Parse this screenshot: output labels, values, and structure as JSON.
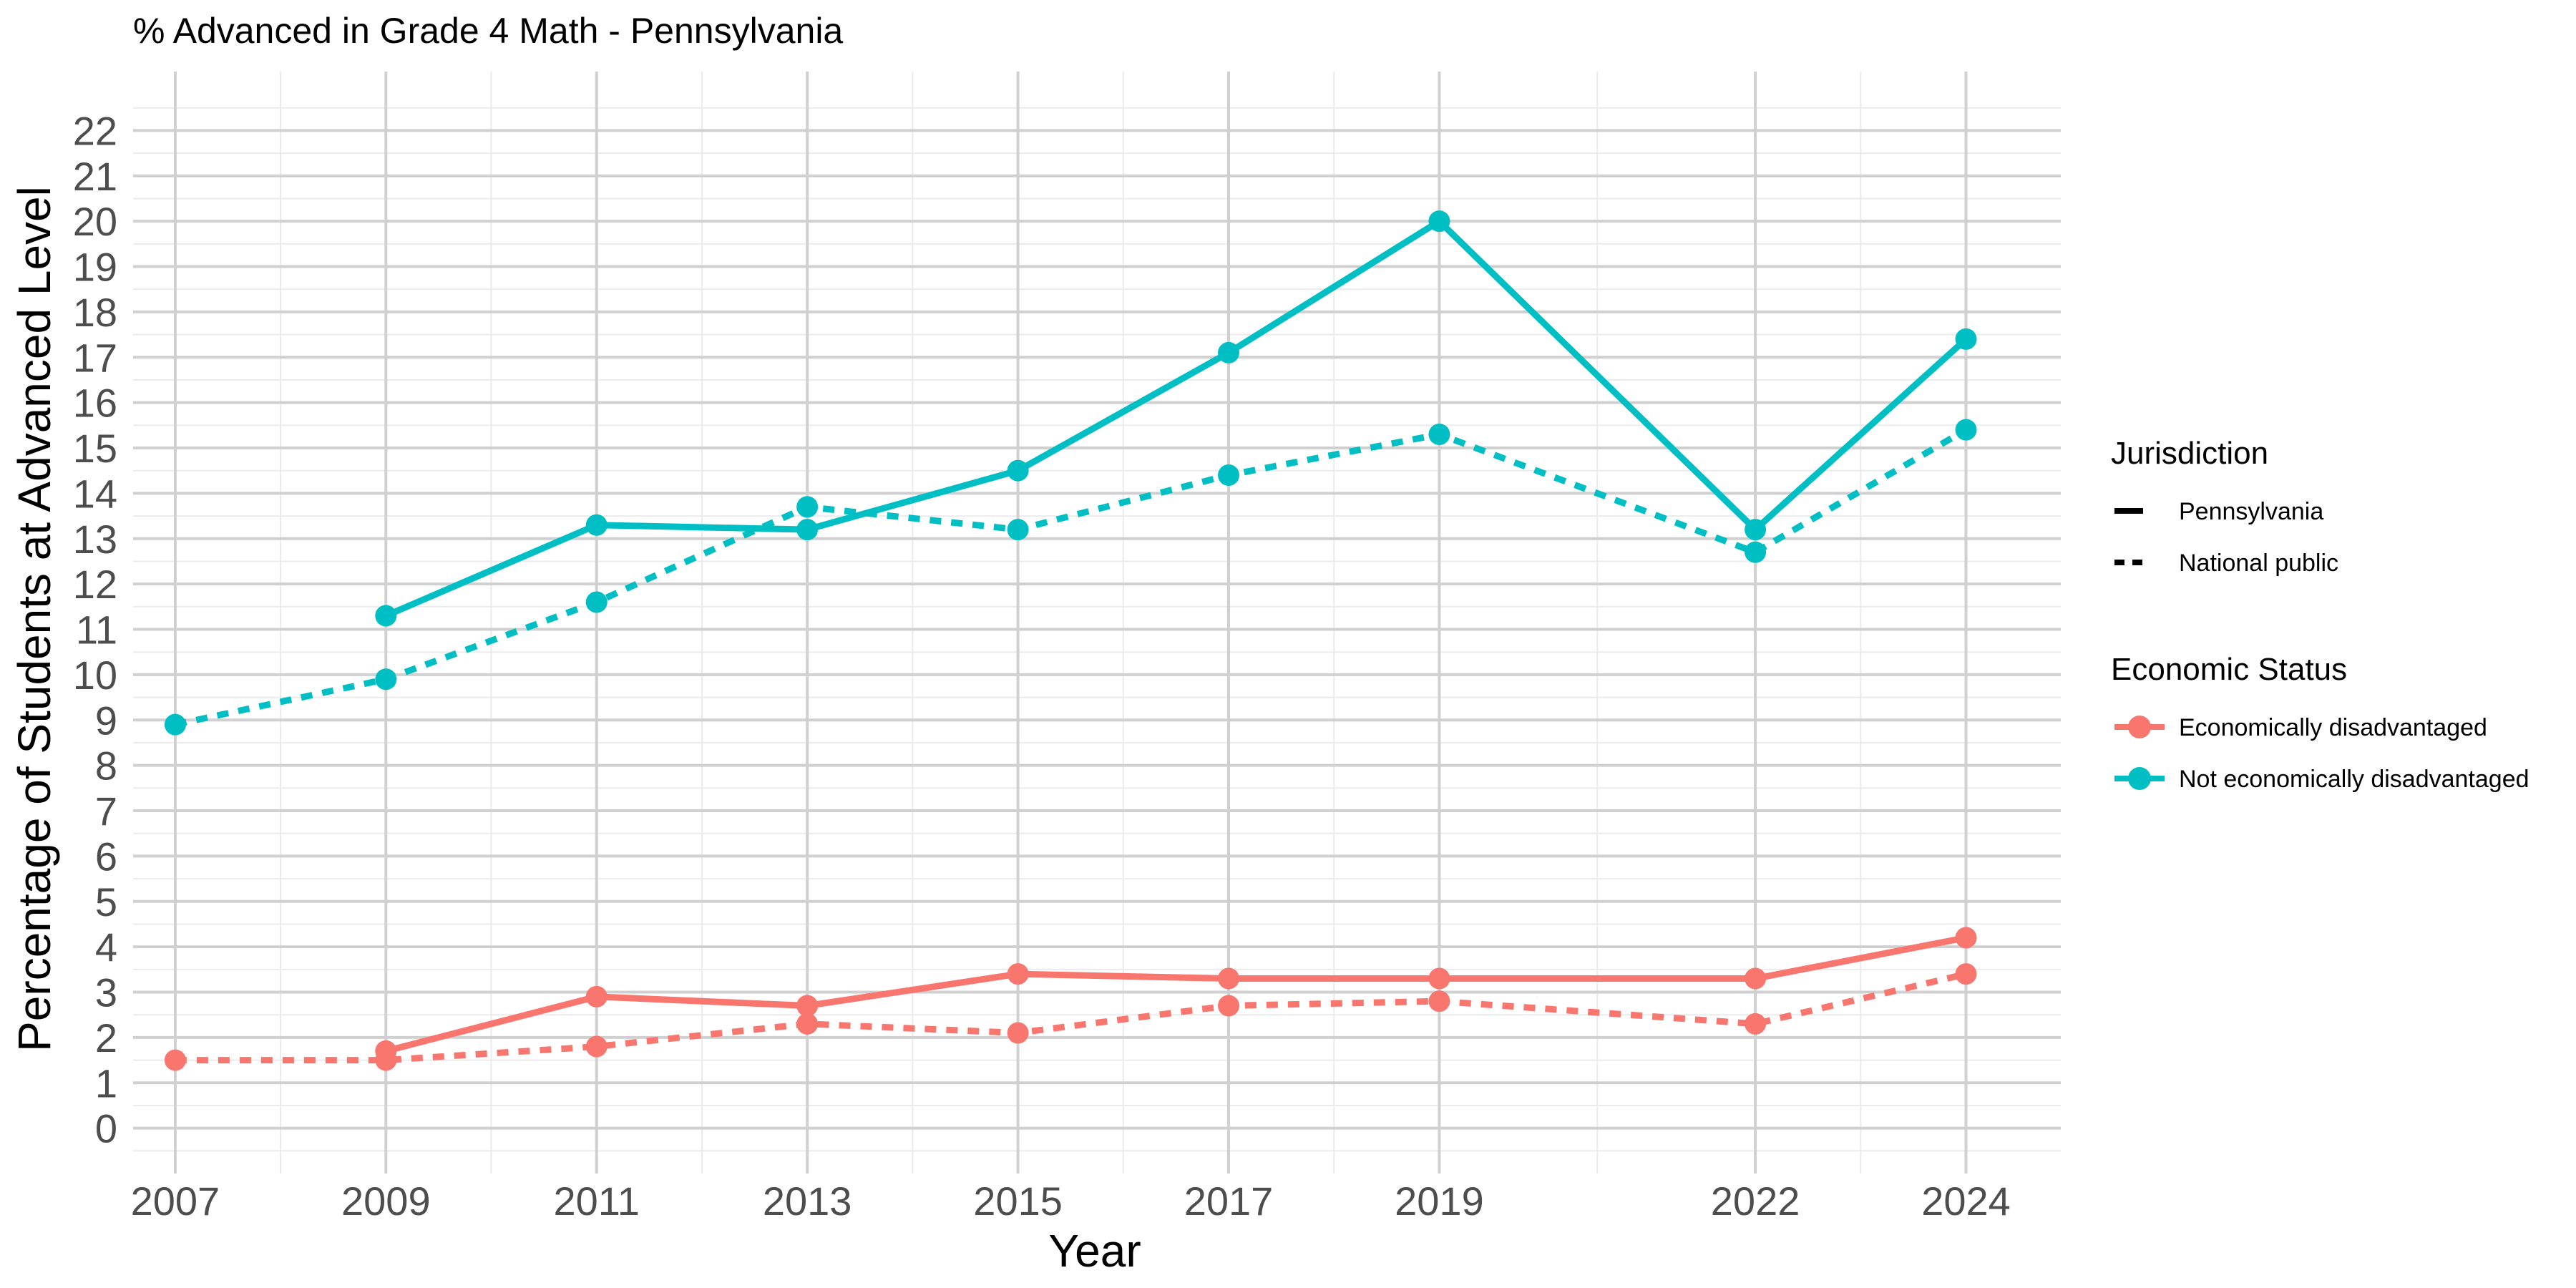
{
  "chart_data": {
    "type": "line",
    "title": "% Advanced in Grade 4 Math - Pennsylvania",
    "xlabel": "Year",
    "ylabel": "Percentage of Students at Advanced Level",
    "xlim": [
      2006.6,
      2024.9
    ],
    "ylim": [
      -1,
      23.3
    ],
    "x_ticks": [
      2007,
      2009,
      2011,
      2013,
      2015,
      2017,
      2019,
      2022,
      2024
    ],
    "y_ticks": [
      0,
      1,
      2,
      3,
      4,
      5,
      6,
      7,
      8,
      9,
      10,
      11,
      12,
      13,
      14,
      15,
      16,
      17,
      18,
      19,
      20,
      21,
      22
    ],
    "grid": true,
    "legend_position": "right",
    "legend": {
      "jurisdiction_title": "Jurisdiction",
      "jurisdiction": [
        {
          "label": "Pennsylvania",
          "linetype": "solid"
        },
        {
          "label": "National public",
          "linetype": "dashed"
        }
      ],
      "economic_title": "Economic Status",
      "economic": [
        {
          "label": "Economically disadvantaged",
          "color": "#F8766D"
        },
        {
          "label": "Not economically disadvantaged",
          "color": "#00BFC4"
        }
      ]
    },
    "series": [
      {
        "jurisdiction": "Pennsylvania",
        "status": "Not economically disadvantaged",
        "color": "#00BFC4",
        "linetype": "solid",
        "points": [
          [
            2009,
            11.3
          ],
          [
            2011,
            13.3
          ],
          [
            2013,
            13.2
          ],
          [
            2015,
            14.5
          ],
          [
            2017,
            17.1
          ],
          [
            2019,
            20.0
          ],
          [
            2022,
            13.2
          ],
          [
            2024,
            17.4
          ]
        ]
      },
      {
        "jurisdiction": "National public",
        "status": "Not economically disadvantaged",
        "color": "#00BFC4",
        "linetype": "dashed",
        "points": [
          [
            2007,
            8.9
          ],
          [
            2009,
            9.9
          ],
          [
            2011,
            11.6
          ],
          [
            2013,
            13.7
          ],
          [
            2015,
            13.2
          ],
          [
            2017,
            14.4
          ],
          [
            2019,
            15.3
          ],
          [
            2022,
            12.7
          ],
          [
            2024,
            15.4
          ]
        ]
      },
      {
        "jurisdiction": "Pennsylvania",
        "status": "Economically disadvantaged",
        "color": "#F8766D",
        "linetype": "solid",
        "points": [
          [
            2009,
            1.7
          ],
          [
            2011,
            2.9
          ],
          [
            2013,
            2.7
          ],
          [
            2015,
            3.4
          ],
          [
            2017,
            3.3
          ],
          [
            2019,
            3.3
          ],
          [
            2022,
            3.3
          ],
          [
            2024,
            4.2
          ]
        ]
      },
      {
        "jurisdiction": "National public",
        "status": "Economically disadvantaged",
        "color": "#F8766D",
        "linetype": "dashed",
        "points": [
          [
            2007,
            1.5
          ],
          [
            2009,
            1.5
          ],
          [
            2011,
            1.8
          ],
          [
            2013,
            2.3
          ],
          [
            2015,
            2.1
          ],
          [
            2017,
            2.7
          ],
          [
            2019,
            2.8
          ],
          [
            2022,
            2.3
          ],
          [
            2024,
            3.4
          ]
        ]
      }
    ]
  }
}
